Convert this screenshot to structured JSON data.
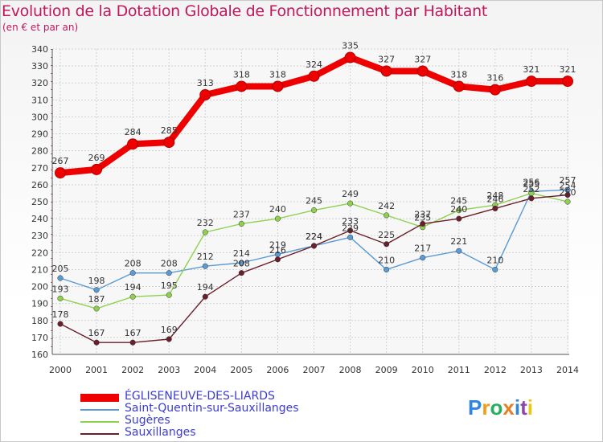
{
  "header": {
    "title": "Evolution de la Dotation Globale de Fonctionnement par Habitant",
    "subtitle": "(en € et par an)"
  },
  "chart_data": {
    "type": "line",
    "title": "Evolution de la Dotation Globale de Fonctionnement par Habitant",
    "subtitle": "(en € et par an)",
    "xlabel": "",
    "ylabel": "",
    "ylim": [
      160,
      340
    ],
    "ytick_step": 10,
    "grid": true,
    "legend_position": "bottom-left",
    "x": [
      "2000",
      "2001",
      "2002",
      "2003",
      "2004",
      "2005",
      "2006",
      "2007",
      "2008",
      "2009",
      "2010",
      "2011",
      "2012",
      "2013",
      "2014"
    ],
    "series": [
      {
        "name": "ÉGLISENEUVE-DES-LIARDS",
        "color": "#ee0000",
        "values": [
          267,
          269,
          284,
          285,
          313,
          318,
          318,
          324,
          335,
          327,
          327,
          318,
          316,
          321,
          321
        ],
        "labels": [
          "267",
          "269",
          "284",
          "285",
          "313",
          "318",
          "318",
          "324",
          "335",
          "327",
          "327",
          "318",
          "316",
          "321",
          "321"
        ]
      },
      {
        "name": "Saint-Quentin-sur-Sauxillanges",
        "color": "#5a9bd5",
        "values": [
          205,
          198,
          208,
          208,
          212,
          214,
          219,
          224,
          229,
          210,
          217,
          221,
          210,
          256,
          257
        ],
        "labels": [
          "205",
          "198",
          "208",
          "208",
          "212",
          "214",
          "219",
          "224",
          "229",
          "210",
          "217",
          "221",
          "210",
          "256",
          "257"
        ]
      },
      {
        "name": "Sugères",
        "color": "#8fd14f",
        "values": [
          193,
          187,
          194,
          195,
          232,
          237,
          240,
          245,
          249,
          242,
          235,
          245,
          248,
          255,
          250
        ],
        "labels": [
          "193",
          "187",
          "194",
          "195",
          "232",
          "237",
          "240",
          "245",
          "249",
          "242",
          "235",
          "245",
          "248",
          "255",
          "250"
        ]
      },
      {
        "name": "Sauxillanges",
        "color": "#6b1f2a",
        "values": [
          178,
          167,
          167,
          169,
          194,
          208,
          216,
          224,
          233,
          225,
          237,
          240,
          246,
          252,
          254
        ],
        "labels": [
          "178",
          "167",
          "167",
          "169",
          "194",
          "208",
          "216",
          "224",
          "233",
          "225",
          "237",
          "240",
          "246",
          "252",
          "254"
        ]
      }
    ]
  },
  "legend": {
    "items": [
      {
        "label": "ÉGLISENEUVE-DES-LIARDS",
        "color": "#ee0000",
        "thick": true
      },
      {
        "label": "Saint-Quentin-sur-Sauxillanges",
        "color": "#5a9bd5",
        "thick": false
      },
      {
        "label": "Sugères",
        "color": "#8fd14f",
        "thick": false
      },
      {
        "label": "Sauxillanges",
        "color": "#6b1f2a",
        "thick": false
      }
    ]
  },
  "logo": {
    "letters": [
      {
        "ch": "P",
        "color": "#2e86de"
      },
      {
        "ch": "r",
        "color": "#f39c12"
      },
      {
        "ch": "o",
        "color": "#27ae60"
      },
      {
        "ch": "x",
        "color": "#e67e22"
      },
      {
        "ch": "i",
        "color": "#2e86de"
      },
      {
        "ch": "t",
        "color": "#8e44ad"
      },
      {
        "ch": "i",
        "color": "#f1c40f"
      }
    ]
  }
}
